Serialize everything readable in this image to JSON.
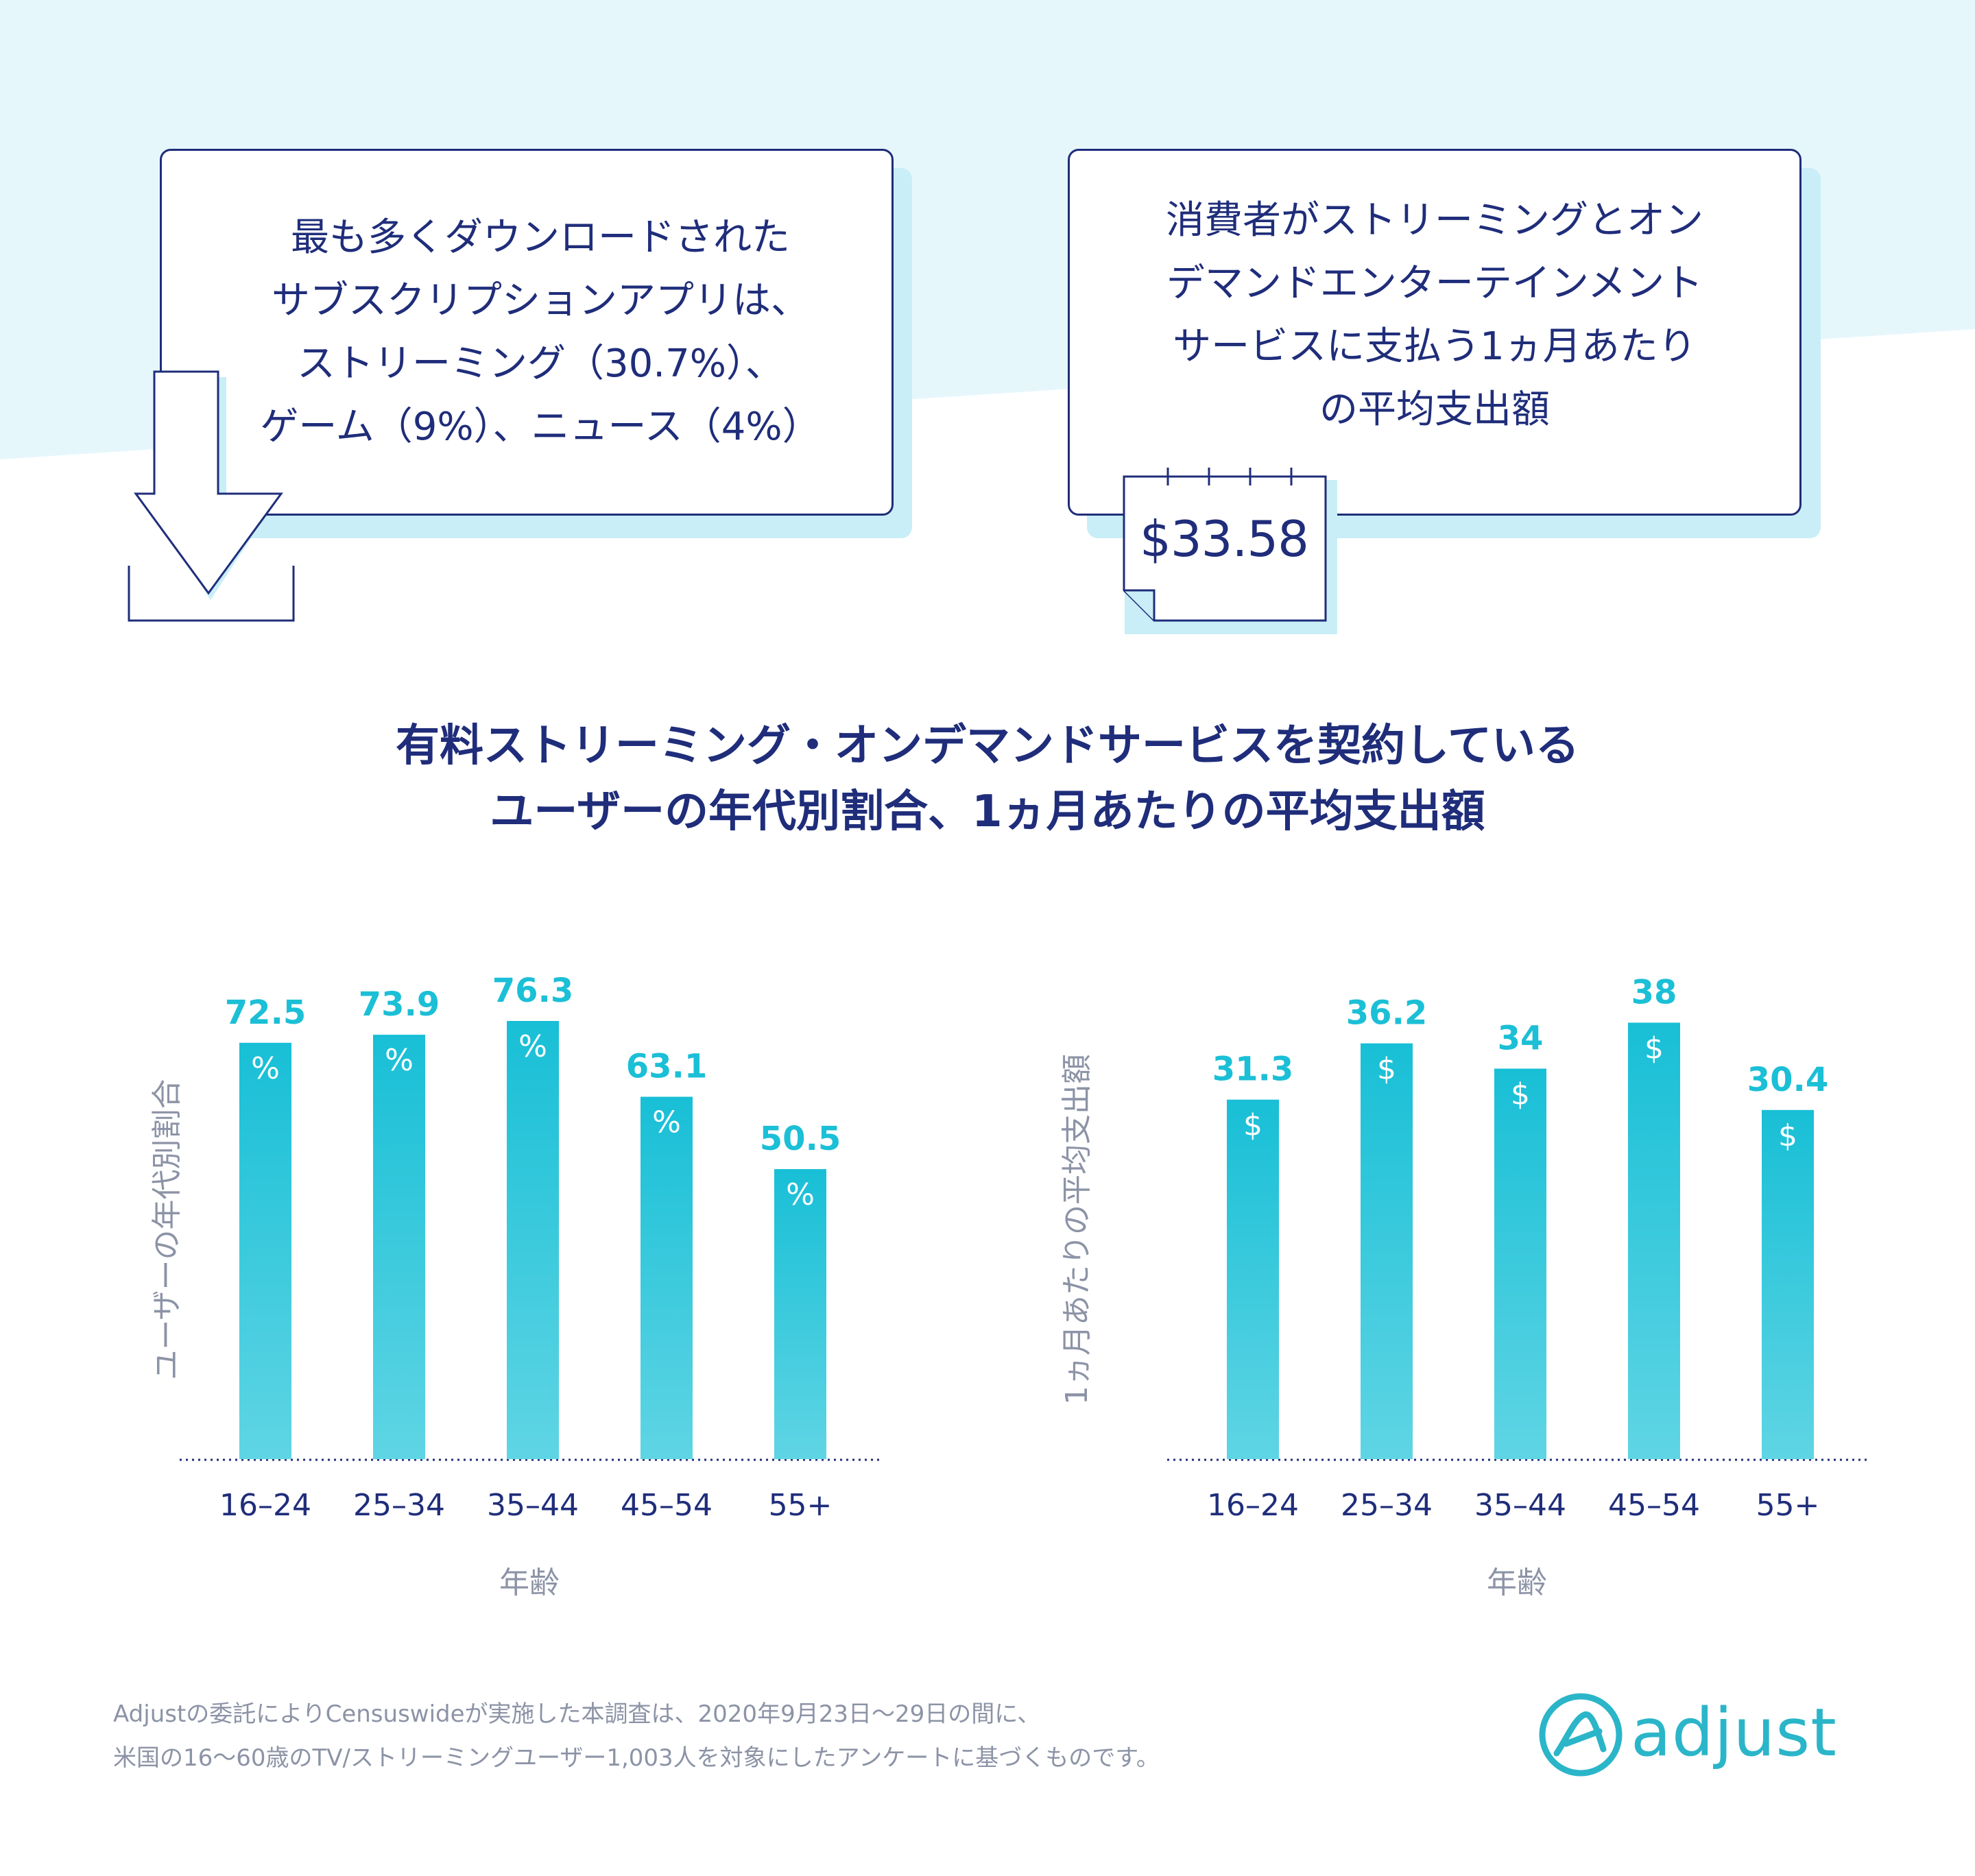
{
  "colors": {
    "navy": "#1f2d7a",
    "accent": "#1bbfd6",
    "bar_top": "#18bfd6",
    "bar_bottom": "#5fd5e4",
    "shadow": "#c9eef7",
    "background_band": "#e6f7fc",
    "muted_text": "#8c93a6",
    "brand": "#2bb5c9"
  },
  "callouts": {
    "left_text": "最も多くダウンロードされた\nサブスクリプションアプリは、\nストリーミング（30.7%）、\nゲーム（9%）、ニュース（4%）",
    "left_icon": "download-arrow-icon",
    "right_text": "消費者がストリーミングとオン\nデマンドエンターテインメント\nサービスに支払う1ヵ月あたり\nの平均支出額",
    "right_icon": "calendar-icon",
    "right_amount": "$33.58"
  },
  "chart_title": "有料ストリーミング・オンデマンドサービスを契約している\nユーザーの年代別割合、1ヵ月あたりの平均支出額",
  "chart_data": [
    {
      "type": "bar",
      "categories": [
        "16–24",
        "25–34",
        "35–44",
        "45–54",
        "55+"
      ],
      "values": [
        72.5,
        73.9,
        76.3,
        63.1,
        50.5
      ],
      "xlabel": "年齢",
      "ylabel": "ユーザーの年代別割合",
      "bar_symbol": "%",
      "ylim": [
        0,
        80
      ],
      "grid": false
    },
    {
      "type": "bar",
      "categories": [
        "16–24",
        "25–34",
        "35–44",
        "45–54",
        "55+"
      ],
      "values": [
        31.3,
        36.2,
        34,
        38,
        30.4
      ],
      "xlabel": "年齢",
      "ylabel": "1ヵ月あたりの平均支出額",
      "bar_symbol": "$",
      "ylim": [
        0,
        40
      ],
      "grid": false
    }
  ],
  "footnote": "Adjustの委託によりCensuswideが実施した本調査は、2020年9月23日〜29日の間に、\n米国の16〜60歳のTV/ストリーミングユーザー1,003人を対象にしたアンケートに基づくものです。",
  "brand": {
    "name": "adjust",
    "icon": "adjust-logo-icon"
  }
}
